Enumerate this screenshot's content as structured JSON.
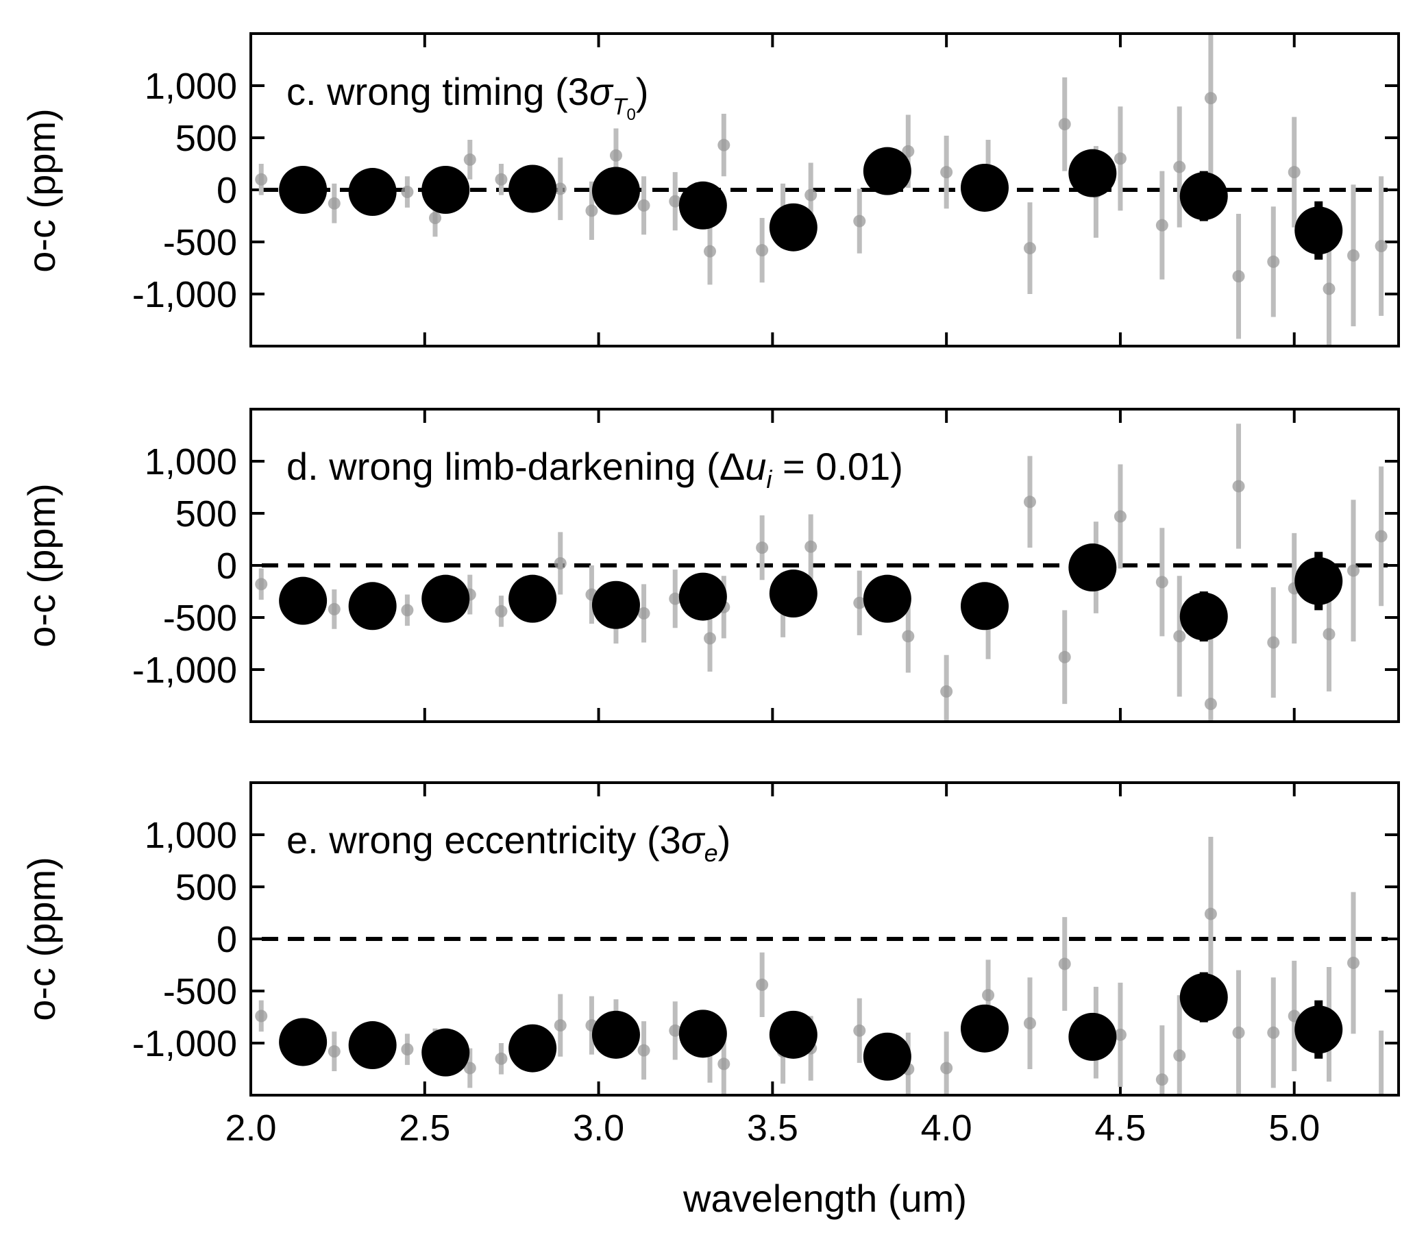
{
  "colors": {
    "binned": "#000000",
    "unbinned": "#9a9a9a",
    "errorbar_unbinned": "#bdbdbd",
    "frame": "#000000",
    "zero_line": "#000000"
  },
  "chart_data": [
    {
      "type": "scatter",
      "annotation": {
        "prefix": "c. wrong timing (3",
        "sigma": "σ",
        "sub": "T",
        "subsub": "0",
        "suffix": ")"
      },
      "ylabel": "o-c (ppm)",
      "xlim": [
        2.0,
        5.3
      ],
      "ylim": [
        -1500,
        1500
      ],
      "yticks": [
        -1000,
        -500,
        0,
        500,
        1000
      ],
      "ytick_labels": [
        "-1,000",
        "-500",
        "0",
        "500",
        "1,000"
      ],
      "reference_line_y": 0,
      "unbinned": {
        "x": [
          2.03,
          2.24,
          2.45,
          2.53,
          2.63,
          2.72,
          2.89,
          2.98,
          3.05,
          3.13,
          3.22,
          3.32,
          3.36,
          3.47,
          3.53,
          3.61,
          3.75,
          3.89,
          4.0,
          4.12,
          4.24,
          4.34,
          4.43,
          4.5,
          4.62,
          4.67,
          4.76,
          4.84,
          4.94,
          5.0,
          5.1,
          5.17,
          5.25
        ],
        "y": [
          100,
          -130,
          -20,
          -270,
          290,
          100,
          10,
          -200,
          330,
          -150,
          -110,
          -590,
          430,
          -580,
          -250,
          -50,
          -300,
          370,
          170,
          140,
          -560,
          630,
          -20,
          300,
          -340,
          220,
          880,
          -830,
          -690,
          170,
          -950,
          -630,
          -540
        ],
        "err": [
          150,
          190,
          150,
          180,
          190,
          150,
          300,
          280,
          260,
          280,
          280,
          320,
          300,
          310,
          310,
          310,
          310,
          350,
          350,
          340,
          440,
          450,
          440,
          500,
          520,
          580,
          740,
          600,
          530,
          530,
          550,
          680,
          670
        ]
      },
      "binned": {
        "x": [
          2.15,
          2.35,
          2.56,
          2.81,
          3.05,
          3.3,
          3.56,
          3.83,
          4.11,
          4.42,
          4.74,
          5.07
        ],
        "y": [
          0,
          -20,
          0,
          10,
          -10,
          -150,
          -360,
          180,
          20,
          160,
          -60,
          -390
        ],
        "err": [
          60,
          60,
          60,
          60,
          60,
          70,
          80,
          80,
          80,
          100,
          240,
          280
        ]
      }
    },
    {
      "type": "scatter",
      "annotation": {
        "prefix": "d. wrong limb-darkening (Δ",
        "var": "u",
        "sub": "i",
        "suffix": " = 0.01)"
      },
      "ylabel": "o-c (ppm)",
      "xlim": [
        2.0,
        5.3
      ],
      "ylim": [
        -1500,
        1500
      ],
      "yticks": [
        -1000,
        -500,
        0,
        500,
        1000
      ],
      "ytick_labels": [
        "-1,000",
        "-500",
        "0",
        "500",
        "1,000"
      ],
      "reference_line_y": 0,
      "unbinned": {
        "x": [
          2.03,
          2.24,
          2.45,
          2.53,
          2.63,
          2.72,
          2.89,
          2.98,
          3.05,
          3.13,
          3.22,
          3.32,
          3.36,
          3.47,
          3.53,
          3.61,
          3.75,
          3.89,
          4.0,
          4.12,
          4.24,
          4.34,
          4.43,
          4.5,
          4.62,
          4.67,
          4.76,
          4.84,
          4.94,
          5.0,
          5.1,
          5.17,
          5.25
        ],
        "y": [
          -180,
          -420,
          -430,
          -330,
          -280,
          -440,
          20,
          -280,
          -490,
          -460,
          -320,
          -700,
          -400,
          170,
          -380,
          180,
          -360,
          -680,
          -1210,
          -560,
          610,
          -880,
          -20,
          470,
          -160,
          -680,
          -1330,
          760,
          -740,
          -220,
          -660,
          -50,
          280
        ],
        "err": [
          150,
          190,
          150,
          180,
          190,
          150,
          300,
          280,
          260,
          280,
          280,
          320,
          300,
          310,
          310,
          310,
          310,
          350,
          350,
          340,
          440,
          450,
          440,
          500,
          520,
          580,
          740,
          600,
          530,
          530,
          550,
          680,
          670
        ]
      },
      "binned": {
        "x": [
          2.15,
          2.35,
          2.56,
          2.81,
          3.05,
          3.3,
          3.56,
          3.83,
          4.11,
          4.42,
          4.74,
          5.07
        ],
        "y": [
          -340,
          -390,
          -320,
          -320,
          -380,
          -300,
          -270,
          -320,
          -390,
          -20,
          -490,
          -150
        ],
        "err": [
          60,
          60,
          60,
          60,
          60,
          70,
          80,
          80,
          80,
          100,
          240,
          280
        ]
      }
    },
    {
      "type": "scatter",
      "annotation": {
        "prefix": "e. wrong eccentricity (3",
        "sigma": "σ",
        "sub": "e",
        "suffix": ")"
      },
      "ylabel": "o-c (ppm)",
      "xlabel": "wavelength (um)",
      "xlim": [
        2.0,
        5.3
      ],
      "ylim": [
        -1500,
        1500
      ],
      "xticks": [
        2.0,
        2.5,
        3.0,
        3.5,
        4.0,
        4.5,
        5.0
      ],
      "xtick_labels": [
        "2.0",
        "2.5",
        "3.0",
        "3.5",
        "4.0",
        "4.5",
        "5.0"
      ],
      "yticks": [
        -1000,
        -500,
        0,
        500,
        1000
      ],
      "ytick_labels": [
        "-1,000",
        "-500",
        "0",
        "500",
        "1,000"
      ],
      "reference_line_y": 0,
      "unbinned": {
        "x": [
          2.03,
          2.24,
          2.45,
          2.53,
          2.63,
          2.72,
          2.89,
          2.98,
          3.05,
          3.13,
          3.22,
          3.32,
          3.36,
          3.47,
          3.53,
          3.61,
          3.75,
          3.89,
          4.0,
          4.12,
          4.24,
          4.34,
          4.43,
          4.5,
          4.62,
          4.67,
          4.76,
          4.84,
          4.94,
          5.0,
          5.1,
          5.17,
          5.25
        ],
        "y": [
          -740,
          -1080,
          -1060,
          -1040,
          -1240,
          -1150,
          -830,
          -830,
          -840,
          -1070,
          -880,
          -1060,
          -1200,
          -440,
          -1080,
          -1050,
          -880,
          -1250,
          -1240,
          -540,
          -810,
          -240,
          -900,
          -920,
          -1350,
          -1120,
          240,
          -900,
          -900,
          -740,
          -820,
          -230,
          -1550
        ],
        "err": [
          150,
          190,
          150,
          180,
          190,
          150,
          300,
          280,
          260,
          280,
          280,
          320,
          300,
          310,
          310,
          310,
          310,
          350,
          350,
          340,
          440,
          450,
          440,
          500,
          520,
          580,
          740,
          600,
          530,
          530,
          550,
          680,
          670
        ]
      },
      "binned": {
        "x": [
          2.15,
          2.35,
          2.56,
          2.81,
          3.05,
          3.3,
          3.56,
          3.83,
          4.11,
          4.42,
          4.74,
          5.07
        ],
        "y": [
          -990,
          -1020,
          -1090,
          -1050,
          -920,
          -910,
          -920,
          -1130,
          -860,
          -940,
          -560,
          -870
        ],
        "err": [
          60,
          60,
          60,
          60,
          60,
          70,
          80,
          80,
          80,
          100,
          240,
          280
        ]
      }
    }
  ]
}
